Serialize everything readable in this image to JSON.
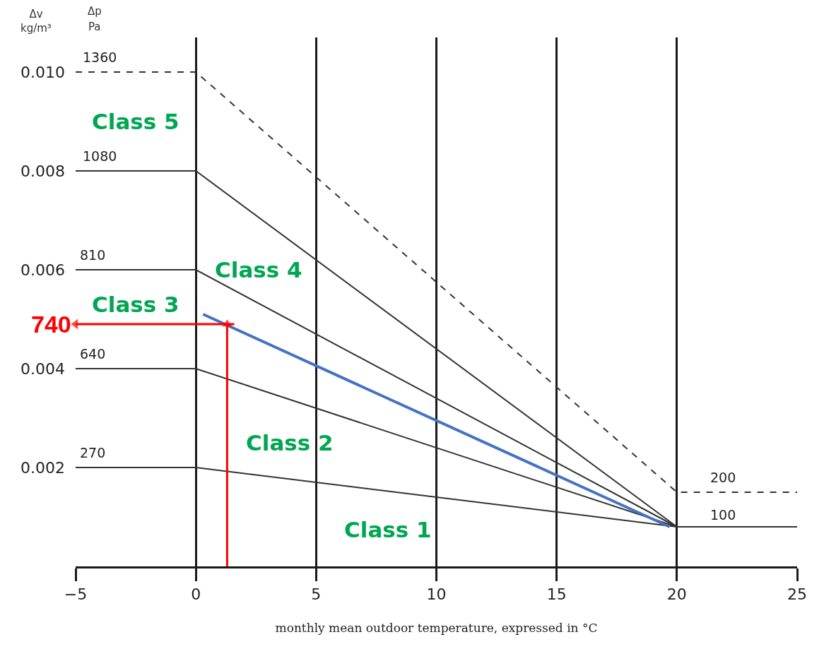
{
  "chart_data": {
    "type": "line",
    "xlabel": "monthly mean outdoor temperature, expressed in °C",
    "ylabel": "Δv kg/m³",
    "xlim": [
      -5,
      25
    ],
    "xticks": [
      -5,
      0,
      5,
      10,
      15,
      20,
      25
    ],
    "ylim": [
      0,
      0.0107
    ],
    "yticks": [
      {
        "value": 0.002,
        "label": "0.002"
      },
      {
        "value": 0.004,
        "label": "0.004"
      },
      {
        "value": 0.006,
        "label": "0.006"
      },
      {
        "value": 0.008,
        "label": "0.008"
      },
      {
        "value": 0.01,
        "label": "0.010"
      }
    ],
    "grid": "x",
    "marker": "none",
    "line_style": "solid",
    "series": [
      {
        "color": "#333333",
        "x": [
          -5,
          0,
          20,
          25
        ],
        "values": [
          0.002,
          0.002,
          0.0008,
          0.0008
        ]
      },
      {
        "color": "#333333",
        "x": [
          -5,
          0,
          20
        ],
        "values": [
          0.004,
          0.004,
          0.0008
        ]
      },
      {
        "color": "#333333",
        "x": [
          -5,
          0,
          20
        ],
        "values": [
          0.006,
          0.006,
          0.0008
        ]
      },
      {
        "color": "#333333",
        "x": [
          -5,
          0,
          20
        ],
        "values": [
          0.008,
          0.008,
          0.0008
        ]
      },
      {
        "color": "#333333",
        "x": [
          -5,
          0,
          20,
          25
        ],
        "values": [
          0.01,
          0.01,
          0.0015,
          0.0015
        ],
        "line_style": "dashed"
      },
      {
        "color": "#4472c4",
        "x": [
          0.3,
          19.7
        ],
        "values": [
          0.0051,
          0.0008
        ]
      },
      {
        "color": "#ff0000",
        "x": [
          1.3,
          1.3
        ],
        "values": [
          0,
          0.0049
        ],
        "marker": "triangle"
      },
      {
        "color": "#ff0000",
        "x": [
          1.6,
          -5
        ],
        "values": [
          0.0049,
          0.0049
        ],
        "marker": "triangle"
      }
    ],
    "annotations": [
      "Δp",
      "Pa",
      "1360",
      "1080",
      "810",
      "640",
      "270",
      "200",
      "100",
      "740",
      "Class 5",
      "Class 4",
      "Class 3",
      "Class 2",
      "Class 1"
    ]
  }
}
